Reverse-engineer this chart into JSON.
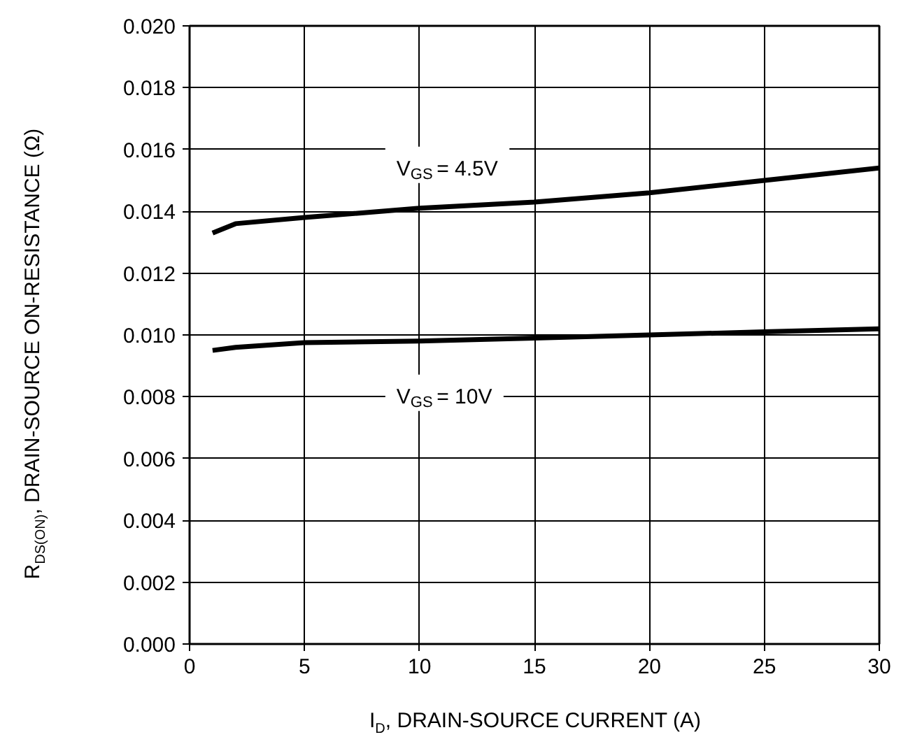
{
  "chart_data": {
    "type": "line",
    "xlabel": "I$_{D}$, DRAIN-SOURCE CURRENT (A)",
    "ylabel": "R$_{DS(ON)}$, DRAIN-SOURCE ON-RESISTANCE (Ω)",
    "x": [
      1,
      2,
      5,
      10,
      15,
      20,
      25,
      30
    ],
    "series": [
      {
        "name": "V$_{GS}$ = 4.5V",
        "color": "#000000",
        "values": [
          0.0133,
          0.0136,
          0.0138,
          0.0141,
          0.0143,
          0.0146,
          0.015,
          0.0154
        ]
      },
      {
        "name": "V$_{GS}$ = 10V",
        "color": "#000000",
        "values": [
          0.0095,
          0.0096,
          0.00975,
          0.0098,
          0.0099,
          0.01,
          0.0101,
          0.0102
        ]
      }
    ],
    "xlim": [
      0,
      30
    ],
    "xticks": [
      0,
      5,
      10,
      15,
      20,
      25,
      30
    ],
    "ylim": [
      0,
      0.02
    ],
    "yticks": [
      {
        "value": 0,
        "label": "0.000"
      },
      {
        "value": 0.002,
        "label": "0.002"
      },
      {
        "value": 0.004,
        "label": "0.004"
      },
      {
        "value": 0.006,
        "label": "0.006"
      },
      {
        "value": 0.008,
        "label": "0.008"
      },
      {
        "value": 0.01,
        "label": "0.010"
      },
      {
        "value": 0.012,
        "label": "0.012"
      },
      {
        "value": 0.014,
        "label": "0.014"
      },
      {
        "value": 0.016,
        "label": "0.016"
      },
      {
        "value": 0.018,
        "label": "0.018"
      },
      {
        "value": 0.02,
        "label": "0.020"
      }
    ],
    "grid": true,
    "marker": "none",
    "line_style": "solid"
  }
}
